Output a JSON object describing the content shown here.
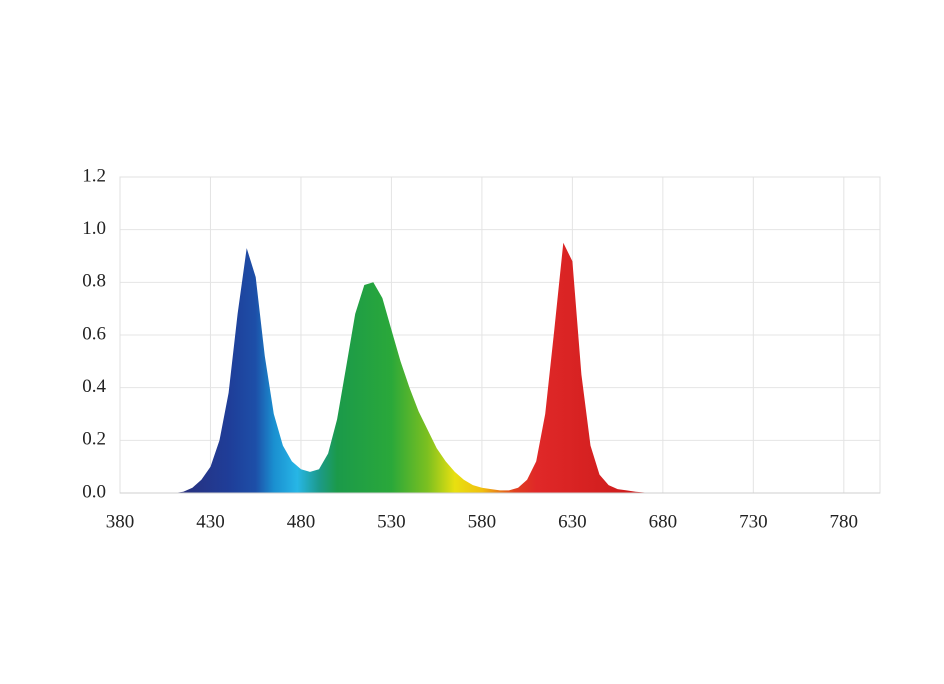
{
  "chart_data": {
    "type": "area",
    "x": [
      410,
      415,
      420,
      425,
      430,
      435,
      440,
      445,
      450,
      455,
      460,
      465,
      470,
      475,
      480,
      485,
      490,
      495,
      500,
      505,
      510,
      515,
      520,
      525,
      530,
      535,
      540,
      545,
      550,
      555,
      560,
      565,
      570,
      575,
      580,
      585,
      590,
      595,
      600,
      605,
      610,
      615,
      620,
      625,
      630,
      635,
      640,
      645,
      650,
      655,
      660,
      665,
      670,
      675
    ],
    "values": [
      0,
      0.005,
      0.02,
      0.05,
      0.1,
      0.2,
      0.38,
      0.68,
      0.93,
      0.82,
      0.52,
      0.3,
      0.18,
      0.12,
      0.09,
      0.08,
      0.09,
      0.15,
      0.28,
      0.48,
      0.68,
      0.79,
      0.8,
      0.74,
      0.62,
      0.5,
      0.4,
      0.31,
      0.24,
      0.17,
      0.12,
      0.08,
      0.05,
      0.03,
      0.02,
      0.015,
      0.01,
      0.01,
      0.02,
      0.05,
      0.12,
      0.3,
      0.62,
      0.95,
      0.88,
      0.45,
      0.18,
      0.07,
      0.03,
      0.015,
      0.01,
      0.005,
      0.002,
      0
    ],
    "xlim": [
      380,
      800
    ],
    "xticks": [
      380,
      430,
      480,
      530,
      580,
      630,
      680,
      730,
      780
    ],
    "ylim": [
      0,
      1.2
    ],
    "yticks": [
      {
        "value": 0,
        "label": "0.0"
      },
      0.2,
      0.4,
      0.6,
      0.8,
      {
        "value": 1,
        "label": "1.0"
      },
      1.2
    ],
    "grid": true
  }
}
